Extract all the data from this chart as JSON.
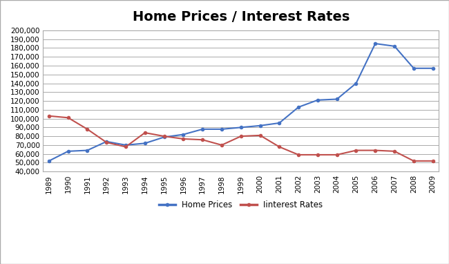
{
  "title": "Home Prices / Interest Rates",
  "years": [
    1989,
    1990,
    1991,
    1992,
    1993,
    1994,
    1995,
    1996,
    1997,
    1998,
    1999,
    2000,
    2001,
    2002,
    2003,
    2004,
    2005,
    2006,
    2007,
    2008,
    2009
  ],
  "home_prices": [
    52000,
    63000,
    64000,
    74000,
    70000,
    72000,
    79000,
    82000,
    88000,
    88000,
    90000,
    92000,
    95000,
    113000,
    121000,
    122000,
    140000,
    185000,
    182000,
    157000,
    157000
  ],
  "interest_rates": [
    103000,
    101000,
    88000,
    73000,
    68000,
    84000,
    80000,
    77000,
    76000,
    70000,
    80000,
    81000,
    68000,
    59000,
    59000,
    59000,
    64000,
    64000,
    63000,
    52000,
    52000
  ],
  "home_prices_color": "#4472C4",
  "interest_rates_color": "#C0504D",
  "background_color": "#FFFFFF",
  "plot_bg_color": "#FFFFFF",
  "grid_color": "#AAAAAA",
  "border_color": "#AAAAAA",
  "ylim": [
    40000,
    200000
  ],
  "ytick_step": 10000,
  "legend_labels": [
    "Home Prices",
    "Iinterest Rates"
  ],
  "marker": "o",
  "marker_size": 3,
  "line_width": 1.5,
  "title_fontsize": 14,
  "tick_fontsize": 7.5,
  "legend_fontsize": 8.5
}
